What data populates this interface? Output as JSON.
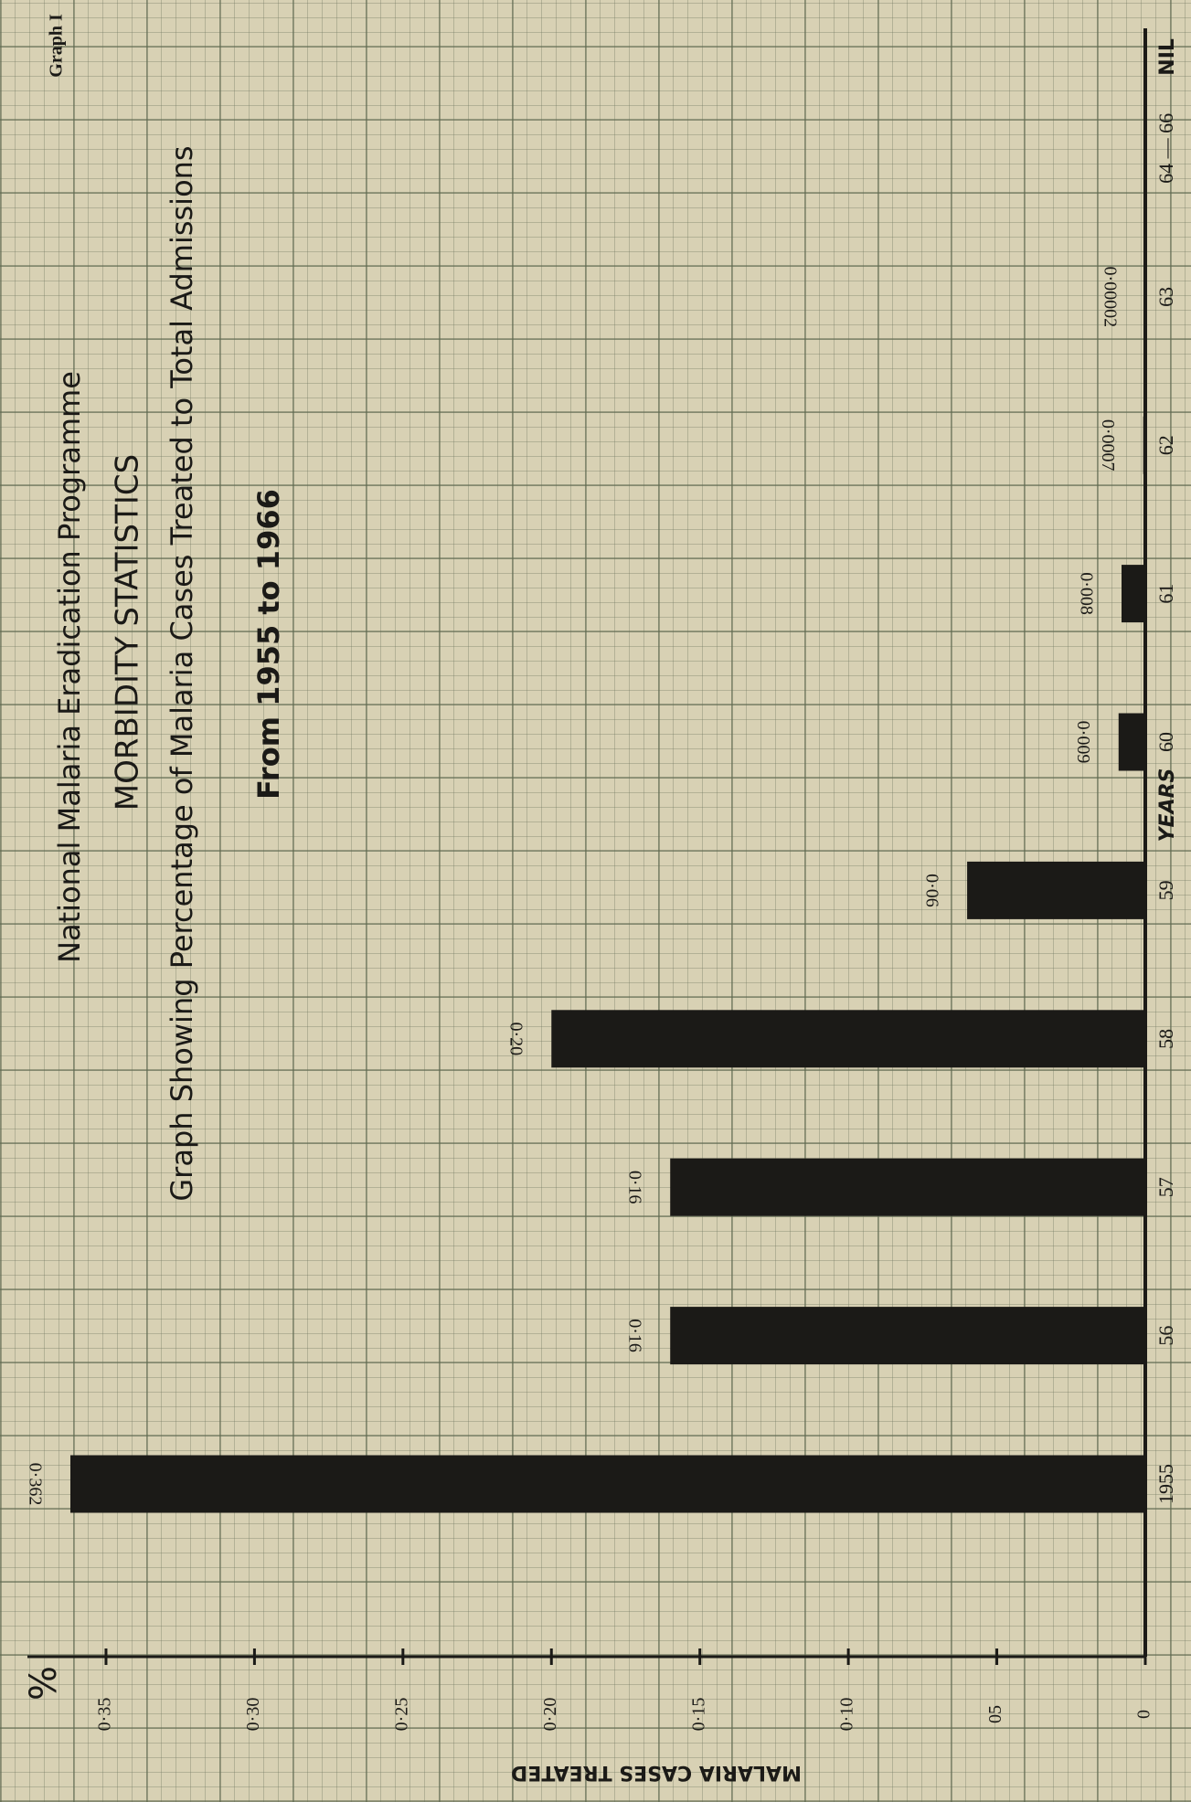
{
  "chart_data": {
    "type": "bar",
    "header": "Graph I",
    "title": "National Malaria Eradication Programme",
    "subtitle": "MORBIDITY STATISTICS",
    "description": "Graph Showing Percentage of Malaria Cases Treated to Total Admissions",
    "period": "From 1955 to 1966",
    "x_label": "YEARS",
    "y_label": "MALARIA CASES TREATED",
    "y_unit": "%",
    "categories": [
      "1955",
      "56",
      "57",
      "58",
      "59",
      "60",
      "61",
      "62",
      "63",
      "64 — 66"
    ],
    "values": [
      0.362,
      0.16,
      0.16,
      0.2,
      0.06,
      0.009,
      0.008,
      0.0007,
      2e-05,
      0
    ],
    "value_labels": [
      "0·362",
      "0·16",
      "0·16",
      "0·20",
      "0·06",
      "0·009",
      "0·008",
      "0·0007",
      "0·00002",
      "NIL"
    ],
    "color": "#1b1a17",
    "ylim": [
      0,
      0.37
    ],
    "yticks": [
      0,
      {
        "value": 0.05,
        "label": "05"
      },
      {
        "value": 0.1,
        "label": "0·10"
      },
      {
        "value": 0.15,
        "label": "0·15"
      },
      {
        "value": 0.2,
        "label": "0·20"
      },
      {
        "value": 0.25,
        "label": "0·25"
      },
      {
        "value": 0.3,
        "label": "0·30"
      },
      {
        "value": 0.35,
        "label": "0·35"
      }
    ]
  }
}
